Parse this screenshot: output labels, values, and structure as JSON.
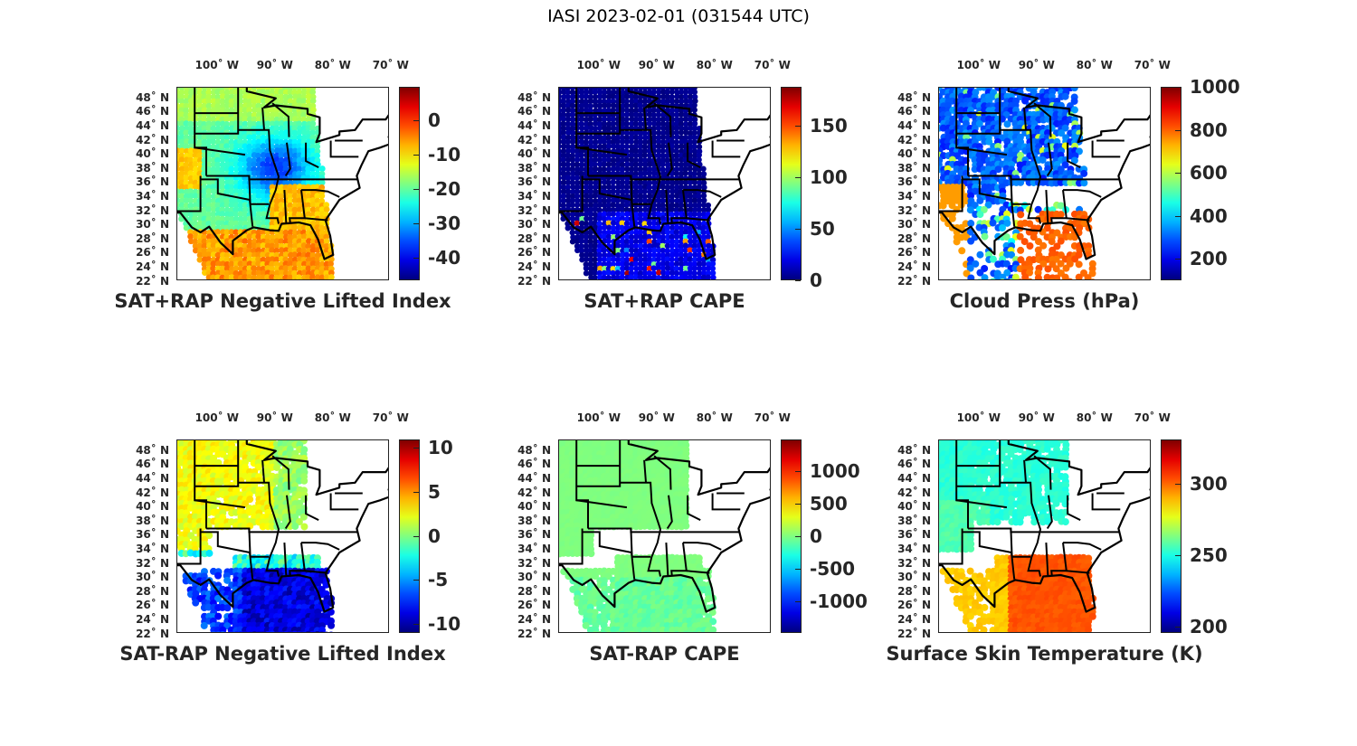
{
  "figure_title": "IASI 2023-02-01 (031544 UTC)",
  "lon_labels": [
    "100˚ W",
    "90˚ W",
    "80˚ W",
    "70˚ W"
  ],
  "lon_values": [
    -100,
    -90,
    -80,
    -70
  ],
  "lat_labels": [
    "48˚ N",
    "46˚ N",
    "44˚ N",
    "42˚ N",
    "40˚ N",
    "38˚ N",
    "36˚ N",
    "34˚ N",
    "32˚ N",
    "30˚ N",
    "28˚ N",
    "26˚ N",
    "24˚ N",
    "22˚ N"
  ],
  "lat_values": [
    48,
    46,
    44,
    42,
    40,
    38,
    36,
    34,
    32,
    30,
    28,
    26,
    24,
    22
  ],
  "colormap": "jet",
  "panels": [
    {
      "title": "SAT+RAP Negative Lifted Index",
      "clim": [
        -46.6,
        9.7
      ],
      "ticks": [
        0,
        -10,
        -20,
        -30,
        -40
      ],
      "tick_labels": [
        "0",
        "-10",
        "-20",
        "-30",
        "-40"
      ]
    },
    {
      "title": "SAT+RAP CAPE",
      "clim": [
        0,
        188
      ],
      "ticks": [
        150,
        100,
        50,
        0
      ],
      "tick_labels": [
        "150",
        "100",
        "50",
        "0"
      ]
    },
    {
      "title": "Cloud Press (hPa)",
      "clim": [
        99,
        1000
      ],
      "ticks": [
        1000,
        800,
        600,
        400,
        200
      ],
      "tick_labels": [
        "1000",
        "800",
        "600",
        "400",
        "200"
      ]
    },
    {
      "title": "SAT-RAP Negative Lifted Index",
      "clim": [
        -11,
        10.9
      ],
      "ticks": [
        10,
        5,
        0,
        -5,
        -10
      ],
      "tick_labels": [
        "10",
        "5",
        "0",
        "-5",
        "-10"
      ]
    },
    {
      "title": "SAT-RAP CAPE",
      "clim": [
        -1486,
        1486
      ],
      "ticks": [
        1000,
        500,
        0,
        -500,
        -1000
      ],
      "tick_labels": [
        "1000",
        "500",
        "0",
        "-500",
        "-1000"
      ]
    },
    {
      "title": "Surface Skin Temperature (K)",
      "clim": [
        195.6,
        331
      ],
      "ticks": [
        300,
        250,
        200
      ],
      "tick_labels": [
        "300",
        "250",
        "200"
      ]
    }
  ]
}
